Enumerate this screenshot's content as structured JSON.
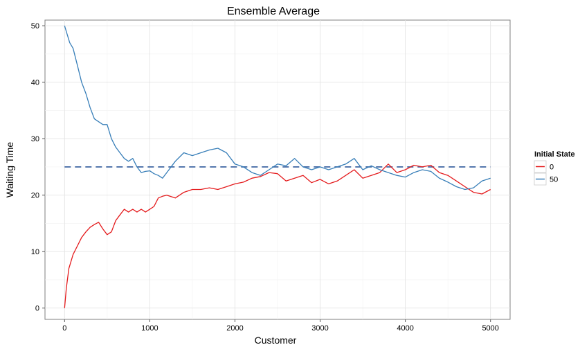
{
  "chart_data": {
    "type": "line",
    "title": "Ensemble Average",
    "xlabel": "Customer",
    "ylabel": "Waiting Time",
    "xlim": [
      -230,
      5230
    ],
    "ylim": [
      -2,
      51
    ],
    "xticks": [
      0,
      1000,
      2000,
      3000,
      4000,
      5000
    ],
    "yticks": [
      0,
      10,
      20,
      30,
      40,
      50
    ],
    "grid": true,
    "legend": {
      "title": "Initial State",
      "placement": "right"
    },
    "reference_line": {
      "y": 25,
      "style": "dashed",
      "color": "#4a6fa8",
      "x_range": [
        0,
        5000
      ]
    },
    "series": [
      {
        "name": "0",
        "color": "#e41a1c",
        "x": [
          0,
          20,
          50,
          100,
          150,
          200,
          250,
          300,
          350,
          400,
          450,
          500,
          550,
          600,
          650,
          700,
          750,
          800,
          850,
          900,
          950,
          1000,
          1050,
          1100,
          1150,
          1200,
          1300,
          1400,
          1500,
          1600,
          1700,
          1800,
          1900,
          2000,
          2100,
          2200,
          2300,
          2400,
          2500,
          2600,
          2700,
          2800,
          2900,
          3000,
          3100,
          3200,
          3300,
          3400,
          3500,
          3600,
          3700,
          3800,
          3900,
          4000,
          4100,
          4200,
          4300,
          4400,
          4500,
          4600,
          4700,
          4800,
          4900,
          5000
        ],
        "y": [
          0,
          3.5,
          7,
          9.5,
          11,
          12.5,
          13.5,
          14.3,
          14.8,
          15.2,
          14,
          13,
          13.5,
          15.5,
          16.5,
          17.5,
          17,
          17.5,
          17,
          17.5,
          17,
          17.5,
          18,
          19.5,
          19.8,
          20,
          19.5,
          20.5,
          21,
          21,
          21.3,
          21,
          21.5,
          22,
          22.3,
          23,
          23.3,
          24,
          23.8,
          22.5,
          23,
          23.5,
          22.2,
          22.8,
          22,
          22.5,
          23.5,
          24.5,
          23,
          23.5,
          24,
          25.5,
          24,
          24.5,
          25.3,
          25,
          25.3,
          24,
          23.5,
          22.5,
          21.5,
          20.5,
          20.2,
          21
        ]
      },
      {
        "name": "50",
        "color": "#377eb8",
        "x": [
          0,
          30,
          60,
          100,
          150,
          200,
          250,
          300,
          350,
          400,
          450,
          500,
          550,
          600,
          650,
          700,
          750,
          800,
          850,
          900,
          950,
          1000,
          1050,
          1100,
          1150,
          1200,
          1300,
          1400,
          1500,
          1600,
          1700,
          1800,
          1900,
          2000,
          2100,
          2200,
          2300,
          2400,
          2500,
          2600,
          2700,
          2800,
          2900,
          3000,
          3100,
          3200,
          3300,
          3400,
          3500,
          3600,
          3700,
          3800,
          3900,
          4000,
          4100,
          4200,
          4300,
          4400,
          4500,
          4600,
          4700,
          4800,
          4900,
          5000
        ],
        "y": [
          50,
          48.5,
          47,
          46,
          43,
          40,
          38,
          35.5,
          33.5,
          33,
          32.5,
          32.5,
          30,
          28.5,
          27.5,
          26.5,
          26,
          26.5,
          25,
          24,
          24.2,
          24.3,
          23.8,
          23.5,
          23,
          24,
          26,
          27.5,
          27,
          27.5,
          28,
          28.3,
          27.5,
          25.5,
          25,
          24,
          23.5,
          24.5,
          25.5,
          25.2,
          26.5,
          25,
          24.5,
          25,
          24.5,
          25,
          25.5,
          26.5,
          24.5,
          25.2,
          24.5,
          24,
          23.5,
          23.2,
          24,
          24.5,
          24.2,
          23,
          22.3,
          21.5,
          21,
          21.3,
          22.5,
          23
        ]
      }
    ]
  }
}
